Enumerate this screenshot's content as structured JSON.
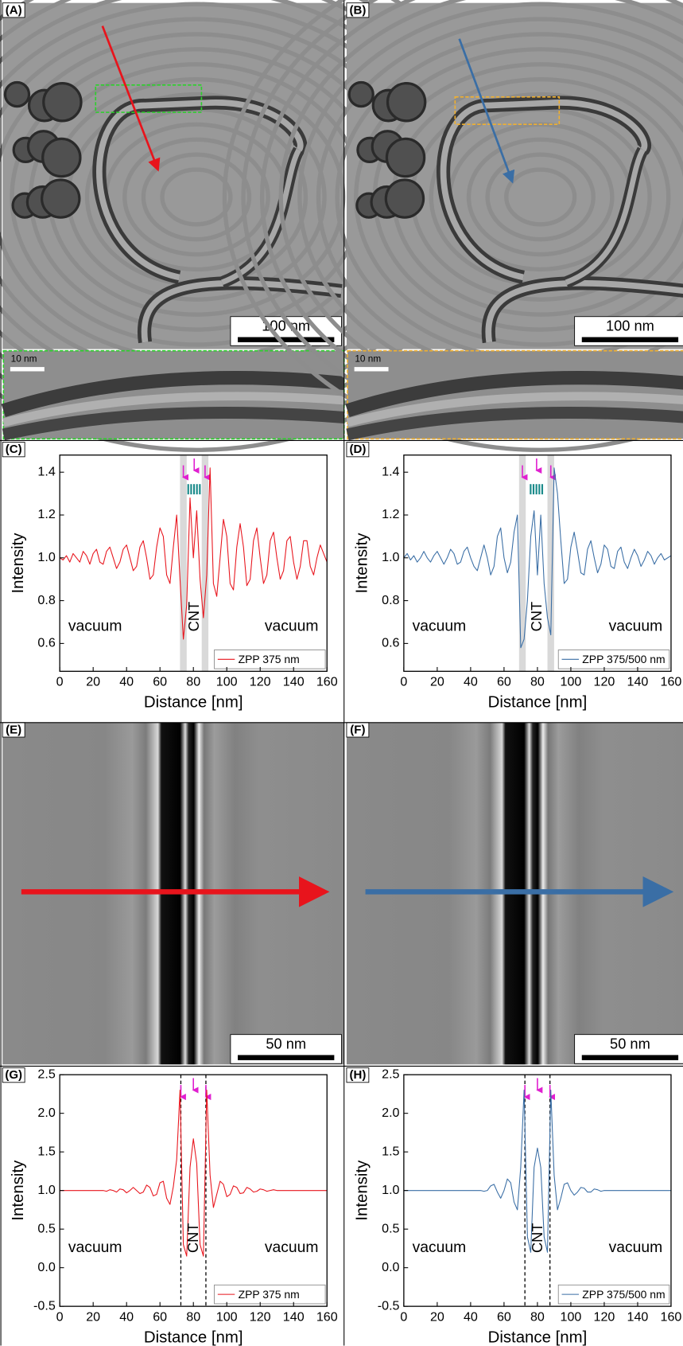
{
  "images": [
    {
      "label": "(A)",
      "scale_bar": "100 nm",
      "inset_scale_bar": "10 nm",
      "arrow_color": "#e8141c",
      "box_color": "#2bd12b"
    },
    {
      "label": "(B)",
      "scale_bar": "100 nm",
      "inset_scale_bar": "10 nm",
      "arrow_color": "#3a6ea5",
      "box_color": "#f0b030"
    },
    {
      "label": "(E)",
      "scale_bar": "50 nm",
      "arrow_color": "#e8141c"
    },
    {
      "label": "(F)",
      "scale_bar": "50 nm",
      "arrow_color": "#3a6ea5"
    }
  ],
  "chart_data": [
    {
      "type": "line",
      "panel": "(C)",
      "xlabel": "Distance [nm]",
      "ylabel": "Intensity",
      "annotations": [
        "vacuum",
        "vacuum",
        "CNT"
      ],
      "legend": "lower right",
      "shaded_regions": [
        [
          72,
          76
        ],
        [
          85,
          89
        ]
      ],
      "xlim": [
        0,
        160
      ],
      "xticks": [
        0,
        20,
        40,
        60,
        80,
        100,
        120,
        140,
        160
      ],
      "ylim": [
        0.47,
        1.48
      ],
      "yticks": [
        0.6,
        0.8,
        1.0,
        1.2,
        1.4
      ],
      "x": [
        0,
        2,
        4,
        6,
        8,
        10,
        12,
        14,
        16,
        18,
        20,
        22,
        24,
        26,
        28,
        30,
        32,
        34,
        36,
        38,
        40,
        42,
        44,
        46,
        48,
        50,
        52,
        54,
        56,
        58,
        60,
        62,
        64,
        66,
        68,
        70,
        72,
        74,
        76,
        78,
        80,
        82,
        84,
        86,
        88,
        90,
        92,
        94,
        96,
        98,
        100,
        102,
        104,
        106,
        108,
        110,
        112,
        114,
        116,
        118,
        120,
        122,
        124,
        126,
        128,
        130,
        132,
        134,
        136,
        138,
        140,
        142,
        144,
        146,
        148,
        150,
        152,
        154,
        156,
        158,
        160
      ],
      "series": [
        {
          "name": "ZPP 375 nm",
          "color": "#e8141c",
          "values": [
            1.0,
            0.99,
            1.01,
            0.98,
            1.02,
            1.0,
            0.98,
            1.03,
            1.01,
            0.97,
            1.02,
            1.04,
            0.98,
            0.97,
            1.03,
            1.05,
            1.0,
            0.95,
            0.98,
            1.04,
            1.06,
            1.0,
            0.94,
            0.96,
            1.05,
            1.08,
            1.0,
            0.9,
            0.92,
            1.05,
            1.14,
            1.1,
            0.92,
            0.88,
            1.05,
            1.2,
            0.9,
            0.62,
            0.78,
            1.28,
            1.0,
            1.22,
            0.9,
            0.72,
            0.92,
            1.42,
            0.88,
            0.82,
            1.0,
            1.18,
            1.1,
            0.88,
            0.85,
            1.05,
            1.16,
            1.05,
            0.87,
            0.9,
            1.08,
            1.14,
            1.0,
            0.88,
            0.92,
            1.08,
            1.12,
            1.0,
            0.9,
            0.94,
            1.08,
            1.1,
            0.98,
            0.9,
            0.96,
            1.08,
            1.08,
            0.96,
            0.92,
            1.0,
            1.06,
            1.02,
            0.98
          ]
        }
      ]
    },
    {
      "type": "line",
      "panel": "(D)",
      "xlabel": "Distance [nm]",
      "ylabel": "Intensity",
      "annotations": [
        "vacuum",
        "vacuum",
        "CNT"
      ],
      "legend": "lower right",
      "shaded_regions": [
        [
          69,
          73
        ],
        [
          86,
          90
        ]
      ],
      "xlim": [
        0,
        160
      ],
      "xticks": [
        0,
        20,
        40,
        60,
        80,
        100,
        120,
        140,
        160
      ],
      "ylim": [
        0.47,
        1.48
      ],
      "yticks": [
        0.6,
        0.8,
        1.0,
        1.2,
        1.4
      ],
      "x": [
        0,
        2,
        4,
        6,
        8,
        10,
        12,
        14,
        16,
        18,
        20,
        22,
        24,
        26,
        28,
        30,
        32,
        34,
        36,
        38,
        40,
        42,
        44,
        46,
        48,
        50,
        52,
        54,
        56,
        58,
        60,
        62,
        64,
        66,
        68,
        70,
        72,
        74,
        76,
        78,
        80,
        82,
        84,
        86,
        88,
        90,
        92,
        94,
        96,
        98,
        100,
        102,
        104,
        106,
        108,
        110,
        112,
        114,
        116,
        118,
        120,
        122,
        124,
        126,
        128,
        130,
        132,
        134,
        136,
        138,
        140,
        142,
        144,
        146,
        148,
        150,
        152,
        154,
        156,
        158,
        160
      ],
      "series": [
        {
          "name": "ZPP 375/500 nm",
          "color": "#3a6ea5",
          "values": [
            1.0,
            1.02,
            0.99,
            1.01,
            0.98,
            1.0,
            1.03,
            1.0,
            0.98,
            1.01,
            1.03,
            1.0,
            0.97,
            1.0,
            1.04,
            1.02,
            0.97,
            0.98,
            1.03,
            1.05,
            1.0,
            0.96,
            0.94,
            1.0,
            1.06,
            1.0,
            0.92,
            0.96,
            1.1,
            1.14,
            1.0,
            0.93,
            0.98,
            1.12,
            1.2,
            0.58,
            0.62,
            0.8,
            1.1,
            1.22,
            0.92,
            1.2,
            0.88,
            0.72,
            0.64,
            1.42,
            1.3,
            1.08,
            0.88,
            0.9,
            1.05,
            1.12,
            1.03,
            0.93,
            0.92,
            1.04,
            1.08,
            1.0,
            0.93,
            0.97,
            1.06,
            1.04,
            0.96,
            0.95,
            1.03,
            1.05,
            0.98,
            0.95,
            1.0,
            1.04,
            1.01,
            0.96,
            0.99,
            1.03,
            1.01,
            0.97,
            1.0,
            1.02,
            0.99,
            1.0,
            1.01
          ]
        }
      ]
    },
    {
      "type": "line",
      "panel": "(G)",
      "xlabel": "Distance [nm]",
      "ylabel": "Intensity",
      "annotations": [
        "vacuum",
        "vacuum",
        "CNT"
      ],
      "legend": "lower right",
      "vlines": [
        72.5,
        87.5
      ],
      "xlim": [
        0,
        160
      ],
      "xticks": [
        0,
        20,
        40,
        60,
        80,
        100,
        120,
        140,
        160
      ],
      "ylim": [
        -0.5,
        2.5
      ],
      "yticks": [
        -0.5,
        0.0,
        0.5,
        1.0,
        1.5,
        2.0,
        2.5
      ],
      "x": [
        0,
        2,
        4,
        6,
        8,
        10,
        12,
        14,
        16,
        18,
        20,
        22,
        24,
        26,
        28,
        30,
        32,
        34,
        36,
        38,
        40,
        42,
        44,
        46,
        48,
        50,
        52,
        54,
        56,
        58,
        60,
        62,
        64,
        66,
        68,
        70,
        72,
        74,
        76,
        78,
        80,
        82,
        84,
        86,
        88,
        90,
        92,
        94,
        96,
        98,
        100,
        102,
        104,
        106,
        108,
        110,
        112,
        114,
        116,
        118,
        120,
        122,
        124,
        126,
        128,
        130,
        132,
        134,
        136,
        138,
        140,
        142,
        144,
        146,
        148,
        150,
        152,
        154,
        156,
        158,
        160
      ],
      "series": [
        {
          "name": "ZPP 375 nm",
          "color": "#e8141c",
          "values": [
            1.0,
            1.0,
            1.0,
            1.0,
            1.0,
            1.0,
            1.0,
            1.0,
            1.0,
            1.0,
            1.0,
            1.0,
            1.0,
            1.0,
            0.99,
            1.01,
            1.0,
            0.98,
            1.02,
            1.01,
            0.97,
            1.0,
            1.04,
            1.0,
            0.96,
            0.98,
            1.07,
            1.04,
            0.93,
            0.95,
            1.1,
            1.12,
            0.9,
            0.82,
            1.05,
            1.4,
            2.3,
            0.3,
            0.15,
            1.3,
            1.67,
            1.35,
            0.3,
            0.15,
            2.3,
            1.2,
            0.78,
            0.95,
            1.12,
            1.08,
            0.92,
            0.95,
            1.06,
            1.04,
            0.96,
            0.97,
            1.04,
            1.02,
            0.98,
            0.99,
            1.02,
            1.01,
            0.99,
            1.0,
            1.01,
            1.0,
            1.0,
            1.0,
            1.0,
            1.0,
            1.0,
            1.0,
            1.0,
            1.0,
            1.0,
            1.0,
            1.0,
            1.0,
            1.0,
            1.0,
            1.0
          ]
        }
      ]
    },
    {
      "type": "line",
      "panel": "(H)",
      "xlabel": "Distance [nm]",
      "ylabel": "Intensity",
      "annotations": [
        "vacuum",
        "vacuum",
        "CNT"
      ],
      "legend": "lower right",
      "vlines": [
        72.5,
        87.5
      ],
      "xlim": [
        0,
        160
      ],
      "xticks": [
        0,
        20,
        40,
        60,
        80,
        100,
        120,
        140,
        160
      ],
      "ylim": [
        -0.5,
        2.5
      ],
      "yticks": [
        -0.5,
        0.0,
        0.5,
        1.0,
        1.5,
        2.0,
        2.5
      ],
      "x": [
        0,
        2,
        4,
        6,
        8,
        10,
        12,
        14,
        16,
        18,
        20,
        22,
        24,
        26,
        28,
        30,
        32,
        34,
        36,
        38,
        40,
        42,
        44,
        46,
        48,
        50,
        52,
        54,
        56,
        58,
        60,
        62,
        64,
        66,
        68,
        70,
        72,
        74,
        76,
        78,
        80,
        82,
        84,
        86,
        88,
        90,
        92,
        94,
        96,
        98,
        100,
        102,
        104,
        106,
        108,
        110,
        112,
        114,
        116,
        118,
        120,
        122,
        124,
        126,
        128,
        130,
        132,
        134,
        136,
        138,
        140,
        142,
        144,
        146,
        148,
        150,
        152,
        154,
        156,
        158,
        160
      ],
      "series": [
        {
          "name": "ZPP 375/500 nm",
          "color": "#3a6ea5",
          "values": [
            1.0,
            1.0,
            1.0,
            1.0,
            1.0,
            1.0,
            1.0,
            1.0,
            1.0,
            1.0,
            1.0,
            1.0,
            1.0,
            1.0,
            1.0,
            1.0,
            1.0,
            1.0,
            1.0,
            1.0,
            1.0,
            1.0,
            1.0,
            1.0,
            0.99,
            1.0,
            1.06,
            1.08,
            0.98,
            0.9,
            1.0,
            1.15,
            1.1,
            0.85,
            0.75,
            1.3,
            2.3,
            0.4,
            0.2,
            1.3,
            1.55,
            1.3,
            0.4,
            0.2,
            2.3,
            1.2,
            0.75,
            0.9,
            1.08,
            1.1,
            1.0,
            0.94,
            0.98,
            1.04,
            1.03,
            0.98,
            0.98,
            1.02,
            1.01,
            0.99,
            1.0,
            1.0,
            1.0,
            1.0,
            1.0,
            1.0,
            1.0,
            1.0,
            1.0,
            1.0,
            1.0,
            1.0,
            1.0,
            1.0,
            1.0,
            1.0,
            1.0,
            1.0,
            1.0,
            1.0,
            1.0
          ]
        }
      ]
    }
  ]
}
